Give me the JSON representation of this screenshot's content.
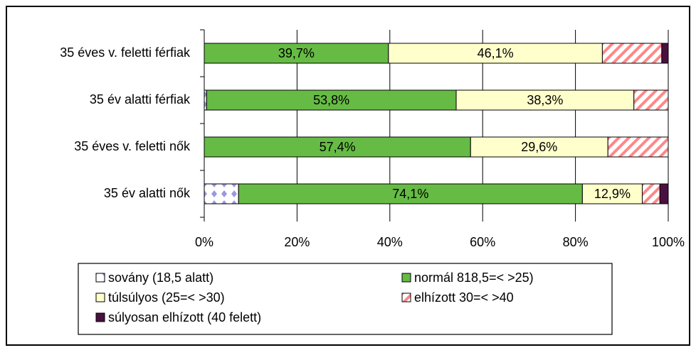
{
  "chart_data": {
    "type": "stacked-bar-horizontal",
    "categories": [
      "35 éves v. feletti férfiak",
      "35 év alatti férfiak",
      "35 éves v. feletti nők",
      "35 év alatti nők"
    ],
    "series": [
      {
        "name": "sovány (18,5 alatt)",
        "color": "#9999dd",
        "pattern": "diamonds",
        "values": [
          0,
          0.5,
          0,
          7.4
        ],
        "value_labels": [
          null,
          null,
          null,
          null
        ]
      },
      {
        "name": "normál 818,5=<  >25)",
        "color": "#66bb44",
        "values": [
          39.7,
          53.8,
          57.4,
          74.1
        ],
        "value_labels": [
          "39,7%",
          "53,8%",
          "57,4%",
          "74,1%"
        ]
      },
      {
        "name": "túlsúlyos (25=<  >30)",
        "color": "#ffffcc",
        "values": [
          46.1,
          38.3,
          29.6,
          12.9
        ],
        "value_labels": [
          "46,1%",
          "38,3%",
          "29,6%",
          "12,9%"
        ]
      },
      {
        "name": "elhízott 30=<  >40",
        "color": "#ff8888",
        "pattern": "stripes",
        "values": [
          12.8,
          7.4,
          13.0,
          3.8
        ],
        "value_labels": [
          null,
          null,
          null,
          null
        ]
      },
      {
        "name": "súlyosan elhízott (40 felett)",
        "color": "#4a1040",
        "values": [
          1.4,
          0,
          0,
          1.8
        ],
        "value_labels": [
          null,
          null,
          null,
          null
        ]
      }
    ],
    "xlim": [
      0,
      100
    ],
    "xticks": [
      {
        "value": 0,
        "label": "0%"
      },
      {
        "value": 20,
        "label": "20%"
      },
      {
        "value": 40,
        "label": "40%"
      },
      {
        "value": 60,
        "label": "60%"
      },
      {
        "value": 80,
        "label": "80%"
      },
      {
        "value": 100,
        "label": "100%"
      }
    ],
    "grid": true,
    "legend": "bottom"
  }
}
